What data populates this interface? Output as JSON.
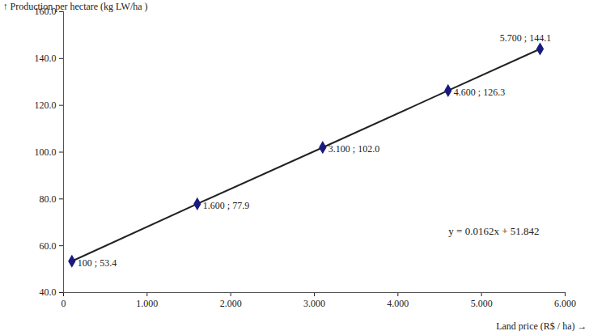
{
  "chart_data": {
    "type": "line",
    "x_label": "Land price (R$ / ha)",
    "y_label": "Production per hectare (kg LW/ha )",
    "x": [
      100,
      1600,
      3100,
      4600,
      5700
    ],
    "series": [
      {
        "values": [
          53.4,
          77.9,
          102.0,
          126.3,
          144.1
        ],
        "value_labels": [
          "100 ; 53.4",
          "1.600 ; 77.9",
          "3.100 ; 102.0",
          "4.600 ; 126.3",
          "5.700 ; 144.1"
        ],
        "color": "#1a1a80",
        "marker": "diamond",
        "line_style": "solid"
      }
    ],
    "data_labels": true,
    "annotations": [
      "y = 0.0162x + 51.842"
    ],
    "xlim": [
      0,
      6000
    ],
    "xticks": [
      0,
      {
        "value": 1000,
        "label": "1.000"
      },
      {
        "value": 2000,
        "label": "2.000"
      },
      {
        "value": 3000,
        "label": "3.000"
      },
      {
        "value": 4000,
        "label": "4.000"
      },
      {
        "value": 5000,
        "label": "5.000"
      },
      {
        "value": 6000,
        "label": "6.000"
      }
    ],
    "ylim": [
      40,
      160
    ],
    "yticks": [
      {
        "value": 40,
        "label": "40.0"
      },
      {
        "value": 60,
        "label": "60.0"
      },
      {
        "value": 80,
        "label": "80.0"
      },
      {
        "value": 100,
        "label": "100.0"
      },
      {
        "value": 120,
        "label": "120.0"
      },
      {
        "value": 140,
        "label": "140.0"
      },
      {
        "value": 160,
        "label": "160.0"
      }
    ],
    "grid": false
  }
}
